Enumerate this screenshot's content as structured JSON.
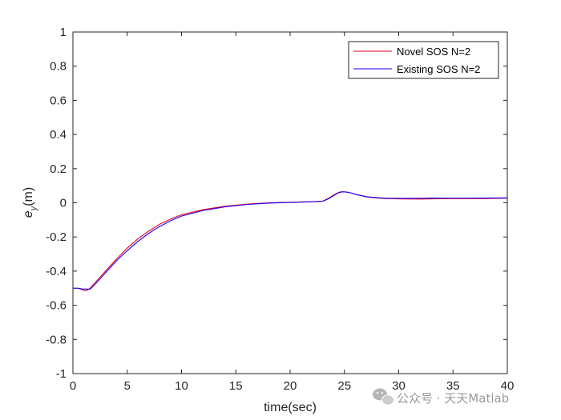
{
  "chart_data": {
    "type": "line",
    "xlabel": "time(sec)",
    "ylabel": {
      "base": "e",
      "subscript": "y",
      "suffix": "(m)"
    },
    "xlim": [
      0,
      40
    ],
    "ylim": [
      -1,
      1
    ],
    "xticks": [
      0,
      5,
      10,
      15,
      20,
      25,
      30,
      35,
      40
    ],
    "yticks": [
      -1,
      -0.8,
      -0.6,
      -0.4,
      -0.2,
      0,
      0.2,
      0.4,
      0.6,
      0.8,
      1
    ],
    "xtick_labels": [
      "0",
      "5",
      "10",
      "15",
      "20",
      "25",
      "30",
      "35",
      "40"
    ],
    "ytick_labels": [
      "-1",
      "-0.8",
      "-0.6",
      "-0.4",
      "-0.2",
      "0",
      "0.2",
      "0.4",
      "0.6",
      "0.8",
      "1"
    ],
    "grid": false,
    "legend_position": "top-right",
    "series": [
      {
        "name": "Novel SOS N=2",
        "color": "#e8001c",
        "x": [
          0,
          0.5,
          0.9,
          1.2,
          1.6,
          2,
          3,
          4,
          5,
          6,
          7,
          8,
          9,
          10,
          12,
          14,
          16,
          18,
          20,
          22,
          23,
          23.5,
          24,
          24.5,
          24.8,
          25.2,
          25.6,
          26,
          27,
          28,
          29,
          30,
          32,
          33,
          35,
          38,
          40
        ],
        "y": [
          -0.5,
          -0.5,
          -0.51,
          -0.515,
          -0.5,
          -0.47,
          -0.4,
          -0.33,
          -0.265,
          -0.21,
          -0.165,
          -0.125,
          -0.095,
          -0.07,
          -0.04,
          -0.02,
          -0.008,
          0,
          0.003,
          0.007,
          0.01,
          0.025,
          0.045,
          0.062,
          0.065,
          0.063,
          0.058,
          0.05,
          0.035,
          0.028,
          0.024,
          0.023,
          0.022,
          0.023,
          0.024,
          0.025,
          0.027
        ]
      },
      {
        "name": "Existing SOS N=2",
        "color": "#1a00ff",
        "x": [
          0,
          0.5,
          0.9,
          1.2,
          1.6,
          2,
          3,
          4,
          5,
          6,
          7,
          8,
          9,
          10,
          12,
          14,
          16,
          18,
          20,
          22,
          23,
          23.5,
          24,
          24.5,
          24.8,
          25.2,
          25.6,
          26,
          27,
          28,
          29,
          30,
          32,
          33,
          35,
          38,
          40
        ],
        "y": [
          -0.5,
          -0.5,
          -0.505,
          -0.505,
          -0.505,
          -0.48,
          -0.41,
          -0.34,
          -0.28,
          -0.225,
          -0.178,
          -0.138,
          -0.105,
          -0.078,
          -0.045,
          -0.024,
          -0.01,
          -0.002,
          0.002,
          0.006,
          0.009,
          0.022,
          0.042,
          0.06,
          0.064,
          0.063,
          0.058,
          0.05,
          0.036,
          0.03,
          0.026,
          0.026,
          0.026,
          0.028,
          0.027,
          0.028,
          0.029
        ]
      }
    ]
  },
  "watermark": "公众号 · 天天Matlab"
}
